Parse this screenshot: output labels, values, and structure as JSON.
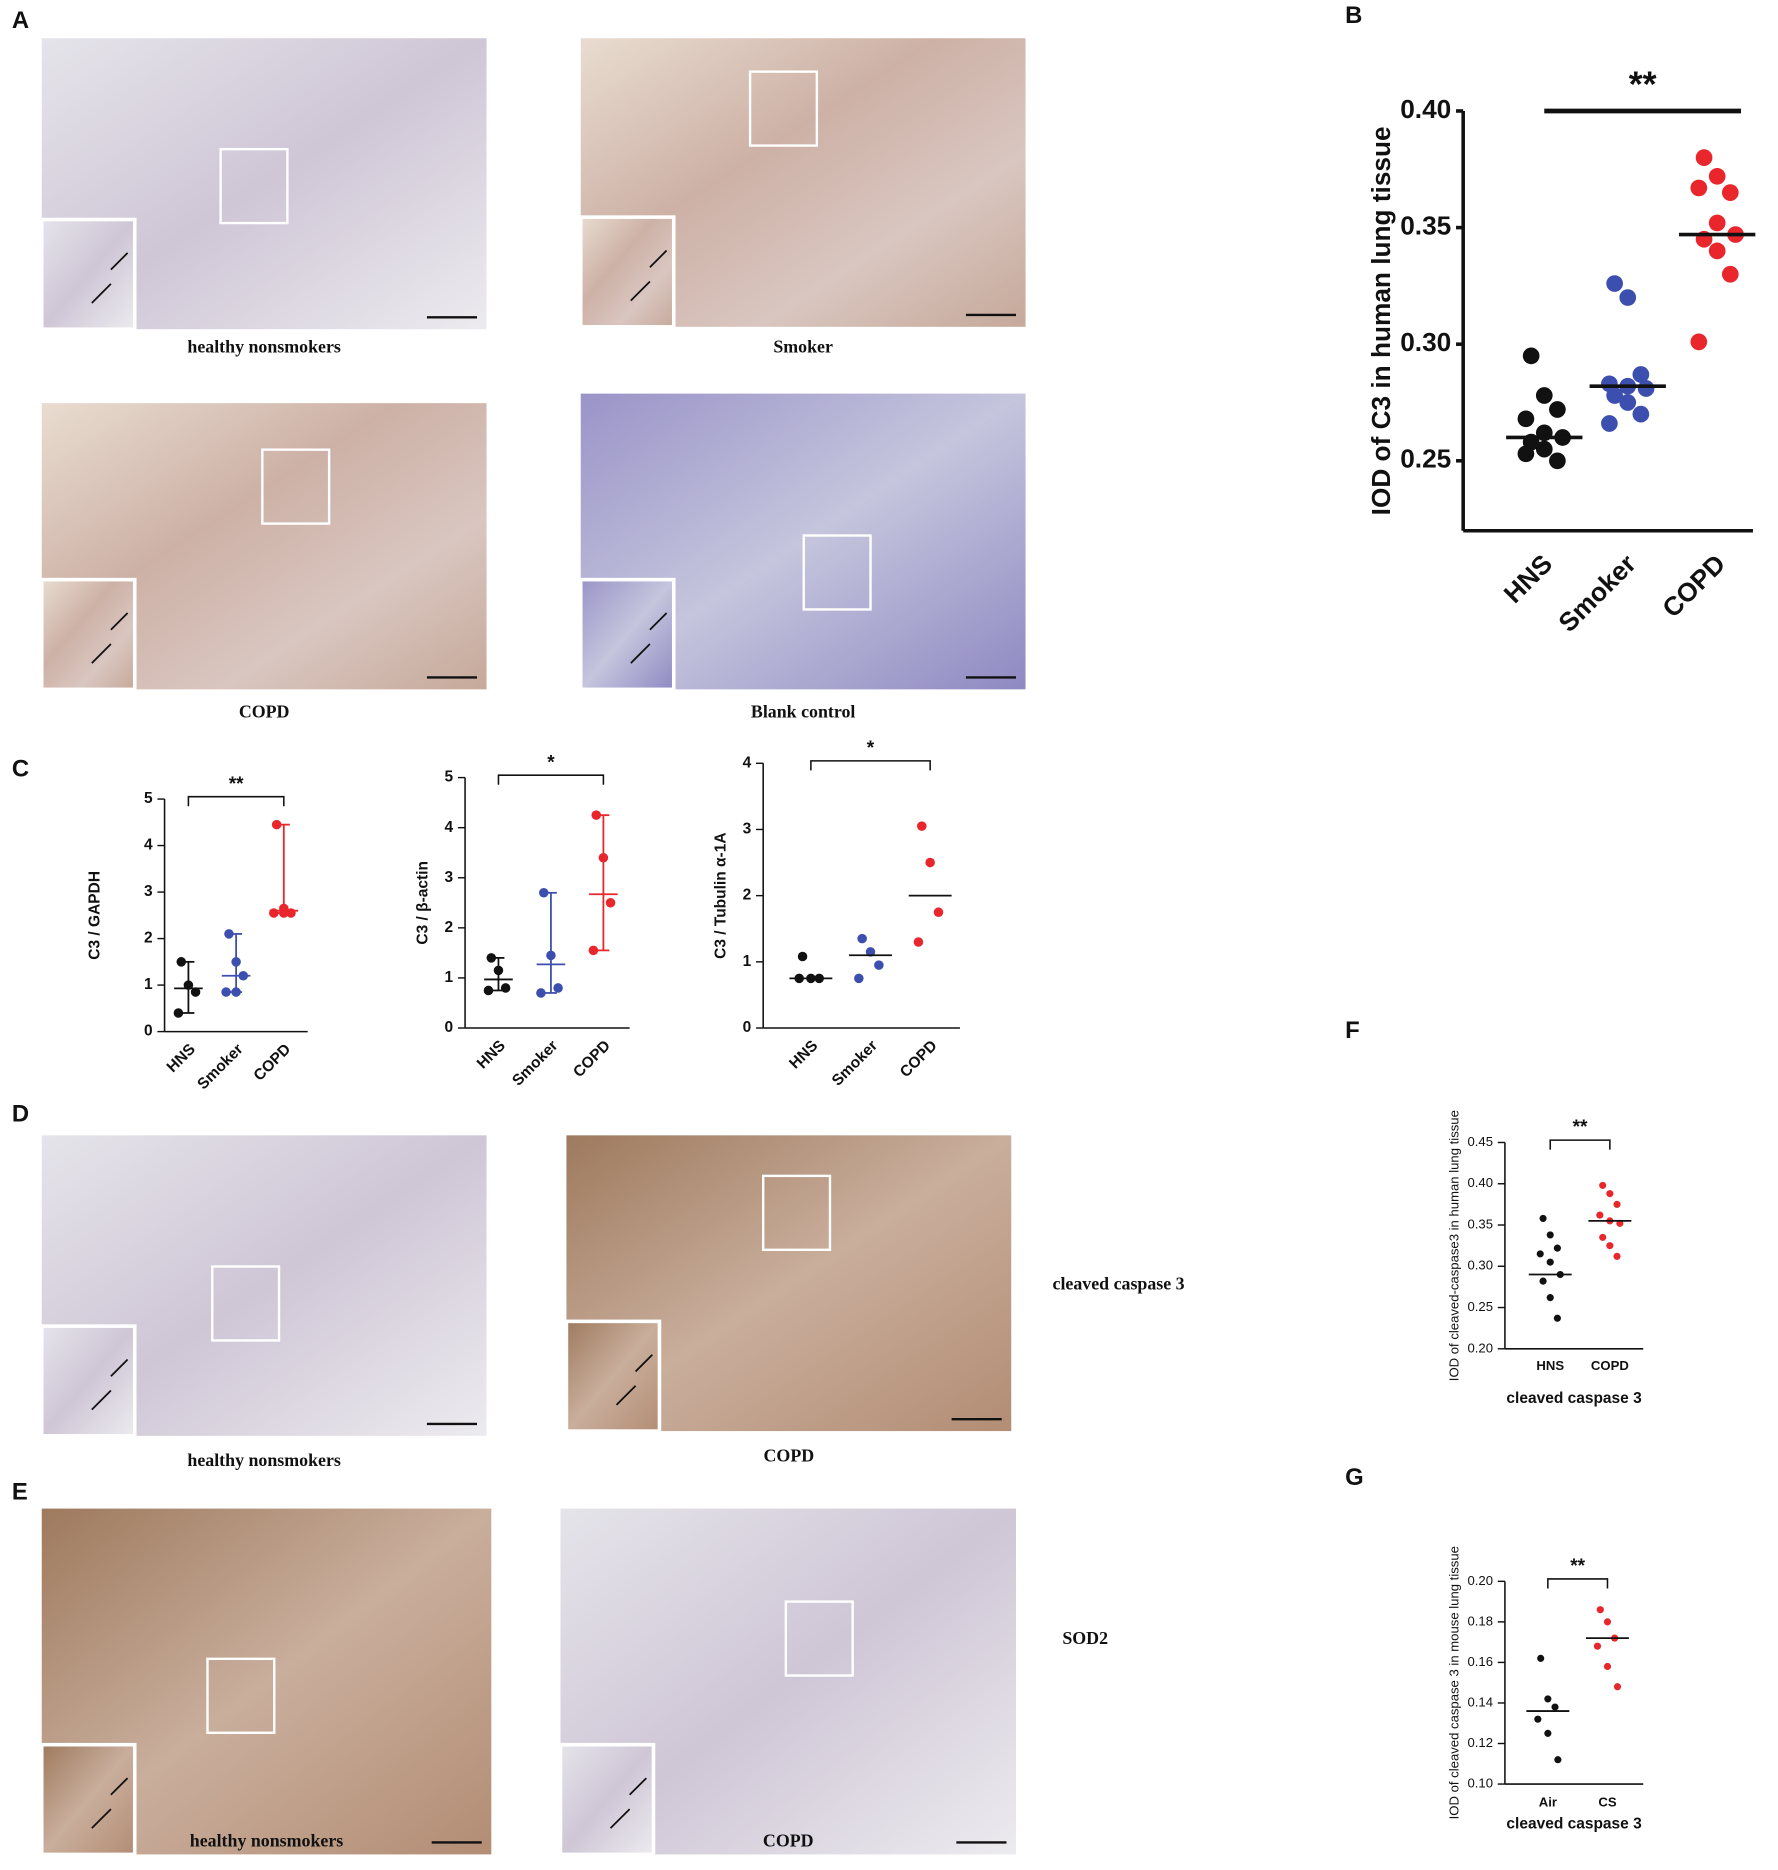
{
  "panel_labels": [
    "A",
    "B",
    "C",
    "D",
    "E",
    "F",
    "G"
  ],
  "images": [
    {
      "caption": "healthy nonsmokers"
    },
    {
      "caption": "Smoker"
    },
    {
      "caption": "COPD"
    },
    {
      "caption": "Blank control"
    },
    {
      "caption": "healthy nonsmokers"
    },
    {
      "caption": "COPD"
    },
    {
      "caption": "healthy nonsmokers"
    },
    {
      "caption": "COPD"
    }
  ],
  "side_labels": [
    "cleaved caspase 3",
    "SOD2"
  ],
  "chart_data": [
    {
      "type": "dot",
      "ylabel": "IOD of C3 in human lung tissue",
      "categories": [
        "HNS",
        "Smoker",
        "COPD"
      ],
      "colors": [
        "#111111",
        "#3d4fae",
        "#e8262c"
      ],
      "values": [
        [
          0.295,
          0.278,
          0.272,
          0.268,
          0.262,
          0.26,
          0.258,
          0.255,
          0.25,
          0.253
        ],
        [
          0.326,
          0.32,
          0.287,
          0.283,
          0.282,
          0.281,
          0.278,
          0.275,
          0.27,
          0.266
        ],
        [
          0.38,
          0.372,
          0.365,
          0.367,
          0.352,
          0.347,
          0.345,
          0.34,
          0.33,
          0.301
        ]
      ],
      "medians": [
        0.26,
        0.282,
        0.347
      ],
      "significance": "**",
      "ylim": [
        0.22,
        0.4
      ],
      "yticks": [
        0.25,
        {
          "value": 0.3,
          "label": "0.30"
        },
        0.35,
        {
          "value": 0.4,
          "label": "0.40"
        }
      ]
    },
    {
      "type": "dot",
      "ylabel": "C3 / GAPDH",
      "categories": [
        "HNS",
        "Smoker",
        "COPD"
      ],
      "colors": [
        "#111111",
        "#3d4fae",
        "#e8262c"
      ],
      "values": [
        [
          1.5,
          1.0,
          0.85,
          0.4
        ],
        [
          2.1,
          1.5,
          1.2,
          0.85,
          0.85
        ],
        [
          4.45,
          2.65,
          2.55,
          2.55,
          2.55
        ]
      ],
      "medians": [
        0.93,
        1.2,
        2.6
      ],
      "range_bars": true,
      "significance": "**",
      "ylim": [
        0,
        5
      ],
      "yticks": [
        0,
        1,
        2,
        3,
        4,
        5
      ]
    },
    {
      "type": "dot",
      "ylabel": "C3 / β-actin",
      "categories": [
        "HNS",
        "Smoker",
        "COPD"
      ],
      "colors": [
        "#111111",
        "#3d4fae",
        "#e8262c"
      ],
      "values": [
        [
          1.4,
          1.15,
          0.8,
          0.75
        ],
        [
          2.7,
          1.45,
          0.8,
          0.7
        ],
        [
          4.25,
          3.4,
          2.5,
          1.55
        ]
      ],
      "medians": [
        0.97,
        1.27,
        2.67
      ],
      "range_bars": true,
      "significance": "*",
      "ylim": [
        0,
        5
      ],
      "yticks": [
        0,
        1,
        2,
        3,
        4,
        5
      ]
    },
    {
      "type": "dot",
      "ylabel": "C3 / Tubulin α-1A",
      "categories": [
        "HNS",
        "Smoker",
        "COPD"
      ],
      "colors": [
        "#111111",
        "#3d4fae",
        "#e8262c"
      ],
      "values": [
        [
          1.08,
          0.75,
          0.75,
          0.75
        ],
        [
          1.35,
          1.15,
          0.95,
          0.75
        ],
        [
          3.05,
          2.5,
          1.75,
          1.3
        ]
      ],
      "medians": [
        0.75,
        1.1,
        2.0
      ],
      "significance": "*",
      "ylim": [
        0,
        4
      ],
      "yticks": [
        0,
        1,
        2,
        3,
        4
      ]
    },
    {
      "type": "dot",
      "ylabel": "IOD of cleaved-caspase3 in human lung tissue",
      "xlabel": "cleaved caspase 3",
      "categories": [
        "HNS",
        "COPD"
      ],
      "colors": [
        "#111111",
        "#e8262c"
      ],
      "values": [
        [
          0.358,
          0.338,
          0.322,
          0.315,
          0.305,
          0.29,
          0.282,
          0.262,
          0.237
        ],
        [
          0.398,
          0.388,
          0.375,
          0.362,
          0.355,
          0.352,
          0.335,
          0.325,
          0.312
        ]
      ],
      "medians": [
        0.29,
        0.355
      ],
      "significance": "**",
      "ylim": [
        0.2,
        0.45
      ],
      "yticks": [
        {
          "value": 0.2,
          "label": "0.20"
        },
        0.25,
        {
          "value": 0.3,
          "label": "0.30"
        },
        0.35,
        {
          "value": 0.4,
          "label": "0.40"
        },
        0.45
      ]
    },
    {
      "type": "dot",
      "ylabel": "IOD of cleaved caspase 3 in mouse lung tissue",
      "xlabel": "cleaved caspase 3",
      "categories": [
        "Air",
        "CS"
      ],
      "colors": [
        "#111111",
        "#e8262c"
      ],
      "values": [
        [
          0.162,
          0.142,
          0.138,
          0.132,
          0.125,
          0.112
        ],
        [
          0.186,
          0.18,
          0.172,
          0.168,
          0.158,
          0.148
        ]
      ],
      "medians": [
        0.136,
        0.172
      ],
      "significance": "**",
      "ylim": [
        0.1,
        0.2
      ],
      "yticks": [
        {
          "value": 0.1,
          "label": "0.10"
        },
        0.12,
        0.14,
        0.16,
        0.18,
        {
          "value": 0.2,
          "label": "0.20"
        }
      ]
    }
  ]
}
